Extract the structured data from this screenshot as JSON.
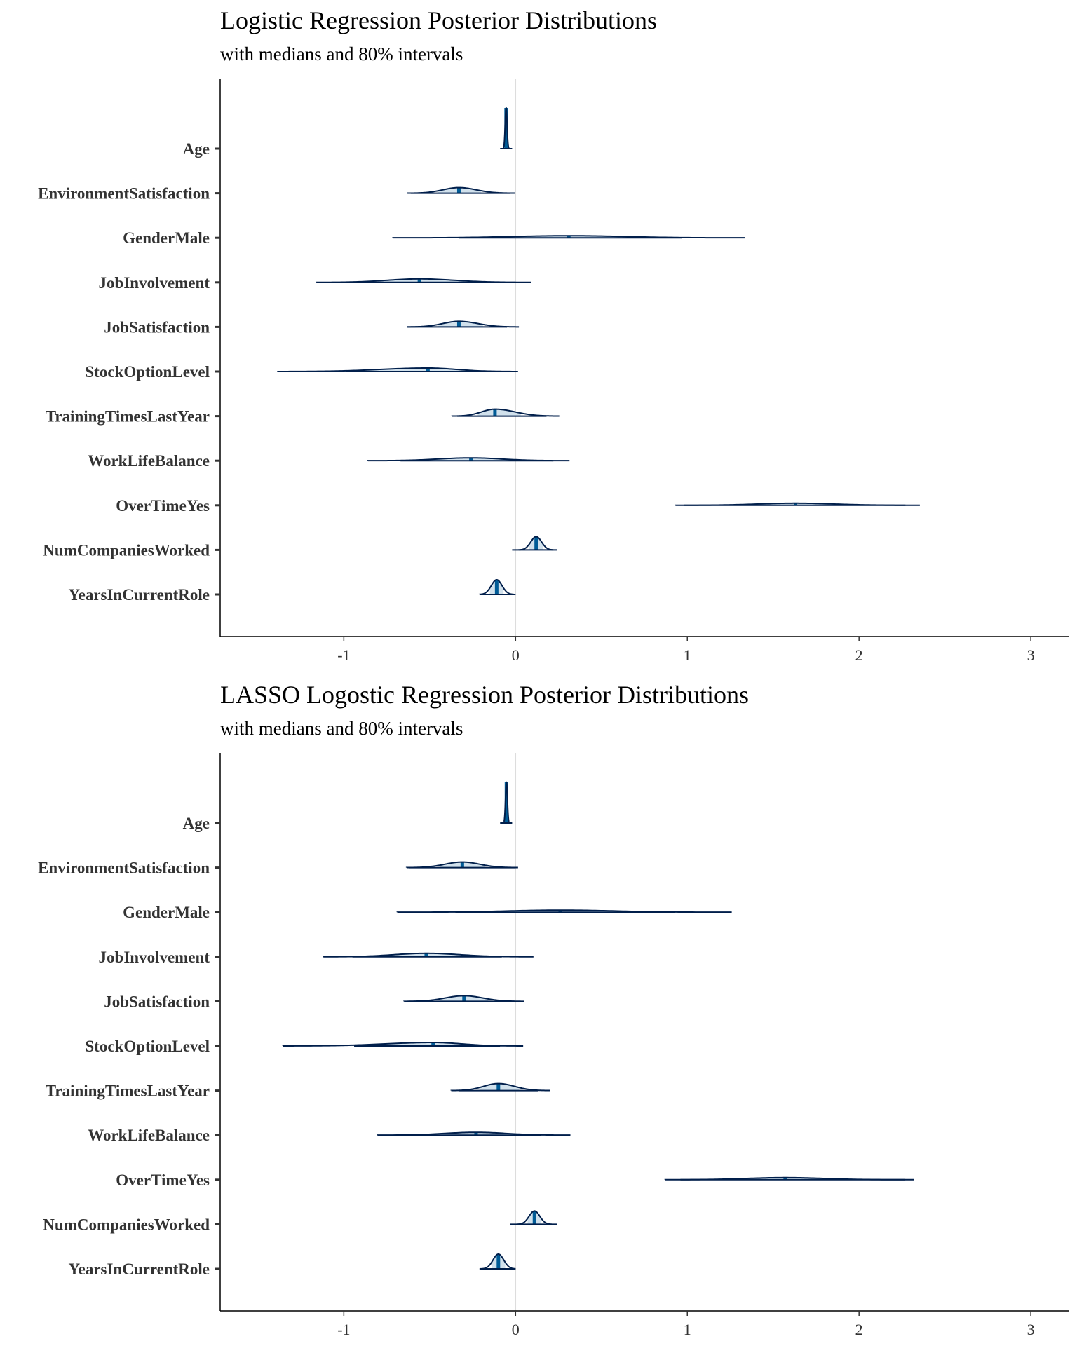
{
  "chart_data": [
    {
      "type": "ridge-interval",
      "title": "Logistic Regression Posterior Distributions",
      "subtitle": "with medians and 80% intervals",
      "xlim": [
        -1.72,
        3.22
      ],
      "x_ticks": [
        -1,
        0,
        1,
        2,
        3
      ],
      "x_tick_labels": [
        "-1",
        "0",
        "1",
        "2",
        "3"
      ],
      "reference_line": 0,
      "grid": false,
      "colors": {
        "fill": "#d1e1ec",
        "line": "#011f4b",
        "median": "#005b96"
      },
      "parameters": [
        {
          "label": "Age",
          "median": -0.055,
          "low80": -0.062,
          "high80": -0.048,
          "low_outer": -0.09,
          "high_outer": -0.02,
          "peak_height": 58
        },
        {
          "label": "EnvironmentSatisfaction",
          "median": -0.33,
          "low80": -0.45,
          "high80": -0.2,
          "low_outer": -0.61,
          "high_outer": -0.03,
          "peak_height": 8
        },
        {
          "label": "GenderMale",
          "median": 0.31,
          "low80": -0.1,
          "high80": 0.72,
          "low_outer": -0.33,
          "high_outer": 0.97,
          "peak_height": 3
        },
        {
          "label": "JobInvolvement",
          "median": -0.56,
          "low80": -0.8,
          "high80": -0.3,
          "low_outer": -0.98,
          "high_outer": -0.09,
          "peak_height": 5
        },
        {
          "label": "JobSatisfaction",
          "median": -0.33,
          "low80": -0.45,
          "high80": -0.19,
          "low_outer": -0.63,
          "high_outer": -0.05,
          "peak_height": 8
        },
        {
          "label": "StockOptionLevel",
          "median": -0.51,
          "low80": -0.86,
          "high80": -0.3,
          "low_outer": -0.99,
          "high_outer": -0.09,
          "peak_height": 5
        },
        {
          "label": "TrainingTimesLastYear",
          "median": -0.12,
          "low80": -0.22,
          "high80": 0.03,
          "low_outer": -0.34,
          "high_outer": 0.18,
          "peak_height": 10
        },
        {
          "label": "WorkLifeBalance",
          "median": -0.26,
          "low80": -0.5,
          "high80": -0.03,
          "low_outer": -0.67,
          "high_outer": 0.22,
          "peak_height": 4
        },
        {
          "label": "OverTimeYes",
          "median": 1.63,
          "low80": 1.35,
          "high80": 1.92,
          "low_outer": 0.98,
          "high_outer": 2.27,
          "peak_height": 3
        },
        {
          "label": "NumCompaniesWorked",
          "median": 0.12,
          "low80": 0.08,
          "high80": 0.16,
          "low_outer": -0.02,
          "high_outer": 0.24,
          "peak_height": 19
        },
        {
          "label": "YearsInCurrentRole",
          "median": -0.11,
          "low80": -0.15,
          "high80": -0.07,
          "low_outer": -0.21,
          "high_outer": 0.0,
          "peak_height": 21
        }
      ]
    },
    {
      "type": "ridge-interval",
      "title": "LASSO Logostic Regression Posterior Distributions",
      "subtitle": "with medians and 80% intervals",
      "xlim": [
        -1.72,
        3.22
      ],
      "x_ticks": [
        -1,
        0,
        1,
        2,
        3
      ],
      "x_tick_labels": [
        "-1",
        "0",
        "1",
        "2",
        "3"
      ],
      "reference_line": 0,
      "grid": false,
      "colors": {
        "fill": "#d1e1ec",
        "line": "#011f4b",
        "median": "#005b96"
      },
      "parameters": [
        {
          "label": "Age",
          "median": -0.053,
          "low80": -0.06,
          "high80": -0.046,
          "low_outer": -0.09,
          "high_outer": -0.02,
          "peak_height": 58
        },
        {
          "label": "EnvironmentSatisfaction",
          "median": -0.31,
          "low80": -0.44,
          "high80": -0.18,
          "low_outer": -0.62,
          "high_outer": 0.0,
          "peak_height": 8
        },
        {
          "label": "GenderMale",
          "median": 0.26,
          "low80": -0.12,
          "high80": 0.66,
          "low_outer": -0.35,
          "high_outer": 0.93,
          "peak_height": 3
        },
        {
          "label": "JobInvolvement",
          "median": -0.52,
          "low80": -0.76,
          "high80": -0.27,
          "low_outer": -0.95,
          "high_outer": -0.08,
          "peak_height": 5
        },
        {
          "label": "JobSatisfaction",
          "median": -0.3,
          "low80": -0.44,
          "high80": -0.16,
          "low_outer": -0.62,
          "high_outer": -0.01,
          "peak_height": 8
        },
        {
          "label": "StockOptionLevel",
          "median": -0.48,
          "low80": -0.83,
          "high80": -0.27,
          "low_outer": -0.94,
          "high_outer": -0.09,
          "peak_height": 5
        },
        {
          "label": "TrainingTimesLastYear",
          "median": -0.1,
          "low80": -0.21,
          "high80": 0.02,
          "low_outer": -0.33,
          "high_outer": 0.13,
          "peak_height": 10
        },
        {
          "label": "WorkLifeBalance",
          "median": -0.23,
          "low80": -0.46,
          "high80": -0.01,
          "low_outer": -0.71,
          "high_outer": 0.15,
          "peak_height": 4
        },
        {
          "label": "OverTimeYes",
          "median": 1.57,
          "low80": 1.29,
          "high80": 1.85,
          "low_outer": 0.96,
          "high_outer": 2.32,
          "peak_height": 3
        },
        {
          "label": "NumCompaniesWorked",
          "median": 0.11,
          "low80": 0.07,
          "high80": 0.15,
          "low_outer": -0.03,
          "high_outer": 0.24,
          "peak_height": 19
        },
        {
          "label": "YearsInCurrentRole",
          "median": -0.1,
          "low80": -0.14,
          "high80": -0.06,
          "low_outer": -0.21,
          "high_outer": 0.0,
          "peak_height": 21
        }
      ]
    }
  ]
}
